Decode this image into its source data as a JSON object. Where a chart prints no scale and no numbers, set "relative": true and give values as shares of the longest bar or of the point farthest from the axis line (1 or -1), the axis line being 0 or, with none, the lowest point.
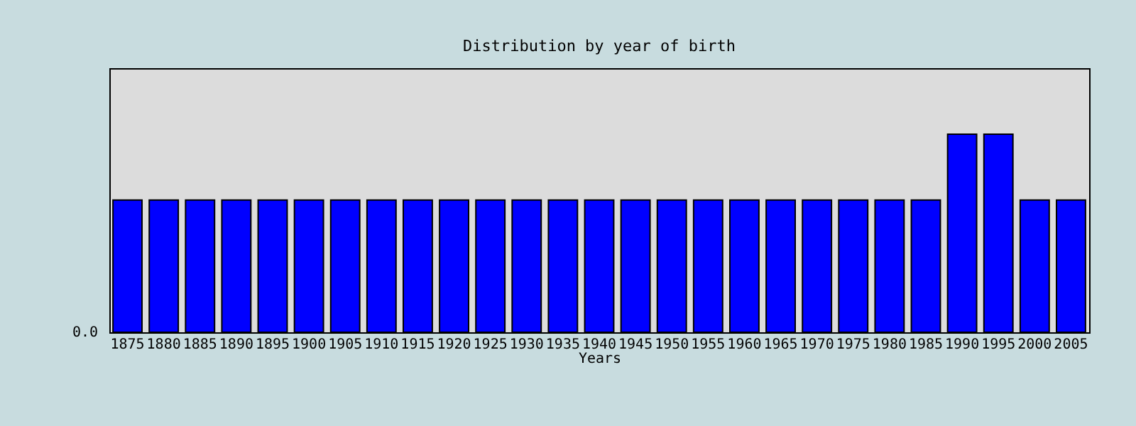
{
  "chart_data": {
    "type": "bar",
    "title": "Distribution by year of birth",
    "xlabel": "Years",
    "relative": true,
    "color": "#0000ff",
    "categories": [
      "1875",
      "1880",
      "1885",
      "1890",
      "1895",
      "1900",
      "1905",
      "1910",
      "1915",
      "1920",
      "1925",
      "1930",
      "1935",
      "1940",
      "1945",
      "1950",
      "1955",
      "1960",
      "1965",
      "1970",
      "1975",
      "1980",
      "1985",
      "1990",
      "1995",
      "2000",
      "2005"
    ],
    "values": [
      0.667,
      0.667,
      0.667,
      0.667,
      0.667,
      0.667,
      0.667,
      0.667,
      0.667,
      0.667,
      0.667,
      0.667,
      0.667,
      0.667,
      0.667,
      0.667,
      0.667,
      0.667,
      0.667,
      0.667,
      0.667,
      0.667,
      0.667,
      1,
      1,
      0.667,
      0.667
    ],
    "annotations": [
      "0.0"
    ]
  }
}
